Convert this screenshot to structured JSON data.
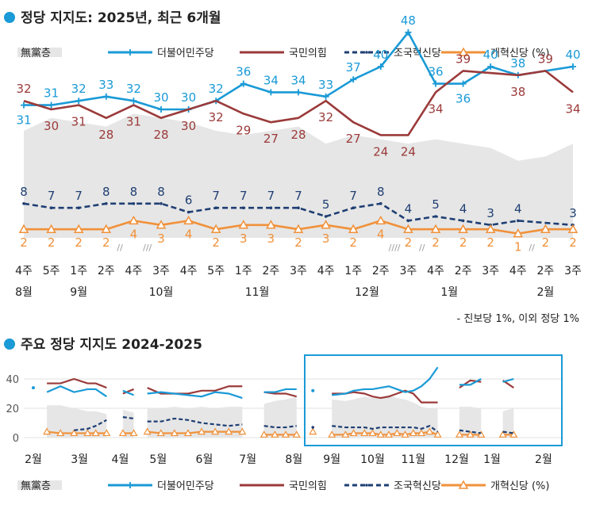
{
  "chart_data": [
    {
      "type": "line",
      "title": "정당 지지도: 2025년, 최근 6개월",
      "legend": {
        "position": "top",
        "items": [
          {
            "key": "independent",
            "label": "無黨층"
          },
          {
            "key": "dp",
            "label": "더불어민주당"
          },
          {
            "key": "ppp",
            "label": "국민의힘"
          },
          {
            "key": "rk",
            "label": "조국혁신당"
          },
          {
            "key": "ref",
            "label": "개혁신당 (%)"
          }
        ]
      },
      "week_labels": [
        "4주",
        "5주",
        "1주",
        "2주",
        "4주",
        "3주",
        "4주",
        "5주",
        "1주",
        "2주",
        "3주",
        "4주",
        "1주",
        "2주",
        "3주",
        "4주",
        "2주",
        "3주",
        "4주",
        "2주",
        "3주"
      ],
      "month_labels": [
        {
          "at": 0,
          "label": "8월"
        },
        {
          "at": 2,
          "label": "9월"
        },
        {
          "at": 5,
          "label": "10월"
        },
        {
          "at": 8.5,
          "label": "11월"
        },
        {
          "at": 12.5,
          "label": "12월"
        },
        {
          "at": 15.5,
          "label": "1월"
        },
        {
          "at": 19,
          "label": "2월"
        }
      ],
      "gap_markers": [
        {
          "after": 3,
          "label": "//"
        },
        {
          "after": 4,
          "label": "///"
        },
        {
          "after": 13,
          "label": "////"
        },
        {
          "after": 14,
          "label": "//"
        },
        {
          "after": 18,
          "label": "//"
        }
      ],
      "series": [
        {
          "key": "dp",
          "name": "더불어민주당",
          "color": "#1a9ad6",
          "values": [
            31,
            31,
            32,
            33,
            32,
            30,
            30,
            32,
            36,
            34,
            34,
            33,
            37,
            40,
            48,
            36,
            36,
            40,
            38,
            40
          ],
          "points_at": [
            0,
            1,
            2,
            3,
            4,
            5,
            6,
            7,
            8,
            9,
            10,
            11,
            12,
            13,
            14,
            15,
            16,
            17,
            18,
            20
          ],
          "labels": [
            31,
            31,
            32,
            33,
            32,
            30,
            30,
            32,
            36,
            34,
            34,
            33,
            37,
            40,
            48,
            36,
            36,
            40,
            38,
            40
          ]
        },
        {
          "key": "ppp",
          "name": "국민의힘",
          "color": "#9b3a3a",
          "values": [
            32,
            30,
            31,
            28,
            31,
            28,
            30,
            32,
            29,
            27,
            28,
            32,
            27,
            24,
            24,
            34,
            39,
            38,
            39,
            34
          ],
          "points_at": [
            0,
            1,
            2,
            3,
            4,
            5,
            6,
            7,
            8,
            9,
            10,
            11,
            12,
            13,
            14,
            15,
            16,
            18,
            19,
            20
          ],
          "labels": [
            32,
            30,
            31,
            28,
            31,
            28,
            30,
            32,
            29,
            27,
            28,
            32,
            27,
            24,
            24,
            34,
            39,
            38,
            39,
            34
          ]
        },
        {
          "key": "rk",
          "name": "조국혁신당",
          "color": "#1f3f73",
          "values": [
            8,
            7,
            7,
            8,
            8,
            8,
            6,
            7,
            7,
            7,
            7,
            5,
            7,
            8,
            4,
            5,
            4,
            3,
            4,
            3
          ],
          "points_at": [
            0,
            1,
            2,
            3,
            4,
            5,
            6,
            7,
            8,
            9,
            10,
            11,
            12,
            13,
            14,
            15,
            16,
            17,
            18,
            20
          ],
          "labels": [
            8,
            7,
            7,
            8,
            8,
            8,
            6,
            7,
            7,
            7,
            7,
            5,
            7,
            8,
            4,
            5,
            4,
            3,
            4,
            3
          ]
        },
        {
          "key": "ref",
          "name": "개혁신당",
          "color": "#f0913a",
          "values": [
            2,
            2,
            2,
            2,
            4,
            3,
            4,
            2,
            3,
            3,
            2,
            3,
            2,
            4,
            2,
            2,
            2,
            2,
            1,
            2,
            2
          ],
          "points_at": [
            0,
            1,
            2,
            3,
            4,
            5,
            6,
            7,
            8,
            9,
            10,
            11,
            12,
            13,
            14,
            15,
            16,
            17,
            18,
            19,
            20
          ],
          "labels": [
            2,
            2,
            2,
            2,
            4,
            3,
            4,
            2,
            3,
            3,
            2,
            3,
            2,
            4,
            2,
            2,
            2,
            2,
            1,
            2,
            2
          ]
        }
      ],
      "area": {
        "key": "independent",
        "name": "無黨층",
        "color": "#e6e6e6",
        "values": [
          25,
          28,
          27,
          26,
          29,
          28,
          27,
          25,
          24,
          25,
          26,
          22,
          24,
          23,
          22,
          23,
          22,
          21,
          18,
          19,
          22
        ]
      },
      "ylim": [
        0,
        50
      ],
      "note": "- 진보당 1%, 이외 정당 1%"
    },
    {
      "type": "line",
      "title": "주요 정당 지지도 2024-2025",
      "yticks": [
        0,
        20,
        40
      ],
      "ylim": [
        0,
        50
      ],
      "month_labels": [
        "2월",
        "3월",
        "4월",
        "5월",
        "6월",
        "7월",
        "8월",
        "9월",
        "10월",
        "11월",
        "12월",
        "1월",
        "2월"
      ],
      "legend": {
        "position": "bottom",
        "items": [
          {
            "key": "independent",
            "label": "無黨층"
          },
          {
            "key": "dp",
            "label": "더불어민주당"
          },
          {
            "key": "ppp",
            "label": "국민의힘"
          },
          {
            "key": "rk",
            "label": "조국혁신당"
          },
          {
            "key": "ref",
            "label": "개혁신당 (%)"
          }
        ]
      },
      "highlight_box": "recent six months (9월–2월)",
      "segments": [
        {
          "x": [
            0.0
          ],
          "dp": [
            34
          ]
        },
        {
          "x": [
            0.5,
            1.0,
            1.5,
            2.0,
            2.3,
            2.7
          ],
          "dp": [
            31,
            35,
            31,
            33,
            33,
            28
          ],
          "ppp": [
            37,
            37,
            40,
            37,
            37,
            34
          ],
          "rk": [
            null,
            null,
            5,
            6,
            8,
            12
          ],
          "ind": [
            22,
            22,
            20,
            18,
            18,
            16
          ],
          "ref": [
            4,
            3,
            3,
            3,
            3,
            3
          ]
        },
        {
          "x": [
            3.3,
            3.7
          ],
          "dp": [
            32,
            29
          ],
          "ppp": [
            30,
            33
          ],
          "rk": [
            14,
            13
          ],
          "ind": [
            19,
            17
          ],
          "ref": [
            3,
            3
          ]
        },
        {
          "x": [
            4.2,
            4.7,
            5.2,
            5.7,
            6.2,
            6.7,
            7.2,
            7.7
          ],
          "dp": [
            30,
            31,
            30,
            29,
            28,
            31,
            30,
            27
          ],
          "ppp": [
            34,
            30,
            30,
            30,
            32,
            32,
            35,
            35
          ],
          "rk": [
            11,
            11,
            13,
            12,
            10,
            9,
            8,
            9
          ],
          "ind": [
            20,
            20,
            21,
            20,
            21,
            20,
            21,
            21
          ],
          "ref": [
            4,
            3,
            3,
            3,
            4,
            4,
            4,
            4
          ]
        },
        {
          "x": [
            8.5,
            8.9,
            9.3,
            9.7
          ],
          "dp": [
            31,
            31,
            33,
            33
          ],
          "ppp": [
            31,
            30,
            30,
            28
          ],
          "rk": [
            8,
            7,
            7,
            8
          ],
          "ind": [
            23,
            25,
            26,
            28
          ],
          "ref": [
            2,
            2,
            2,
            2
          ]
        },
        {
          "x": [
            10.3
          ],
          "dp": [
            32
          ],
          "rk": [
            7
          ],
          "ref": [
            4
          ]
        },
        {
          "x": [
            11.0,
            11.5,
            11.8,
            12.2,
            12.5,
            12.8,
            13.1,
            13.4,
            13.7,
            14.0,
            14.3,
            14.6,
            14.9
          ],
          "dp": [
            29,
            30,
            32,
            33,
            33,
            34,
            35,
            33,
            31,
            32,
            35,
            40,
            48
          ],
          "ppp": [
            30,
            30,
            31,
            30,
            28,
            27,
            28,
            30,
            32,
            30,
            24,
            24,
            24
          ],
          "rk": [
            8,
            7,
            7,
            7,
            6,
            7,
            7,
            7,
            7,
            7,
            6,
            8,
            4
          ],
          "ind": [
            26,
            25,
            26,
            28,
            27,
            28,
            29,
            27,
            26,
            24,
            21,
            20,
            20
          ],
          "ref": [
            2,
            2,
            3,
            3,
            3,
            2,
            2,
            3,
            2,
            3,
            3,
            4,
            2
          ]
        },
        {
          "x": [
            15.7,
            16.1,
            16.5
          ],
          "dp": [
            36,
            36,
            40
          ],
          "ppp": [
            34,
            39,
            38
          ],
          "rk": [
            5,
            4,
            3
          ],
          "ind": [
            21,
            21,
            20
          ],
          "ref": [
            2,
            2,
            2
          ]
        },
        {
          "x": [
            17.3,
            17.7
          ],
          "dp": [
            38,
            40
          ],
          "ppp": [
            39,
            34
          ],
          "rk": [
            4,
            3
          ],
          "ind": [
            18,
            20
          ],
          "ref": [
            2,
            2
          ]
        }
      ],
      "note": ""
    }
  ]
}
